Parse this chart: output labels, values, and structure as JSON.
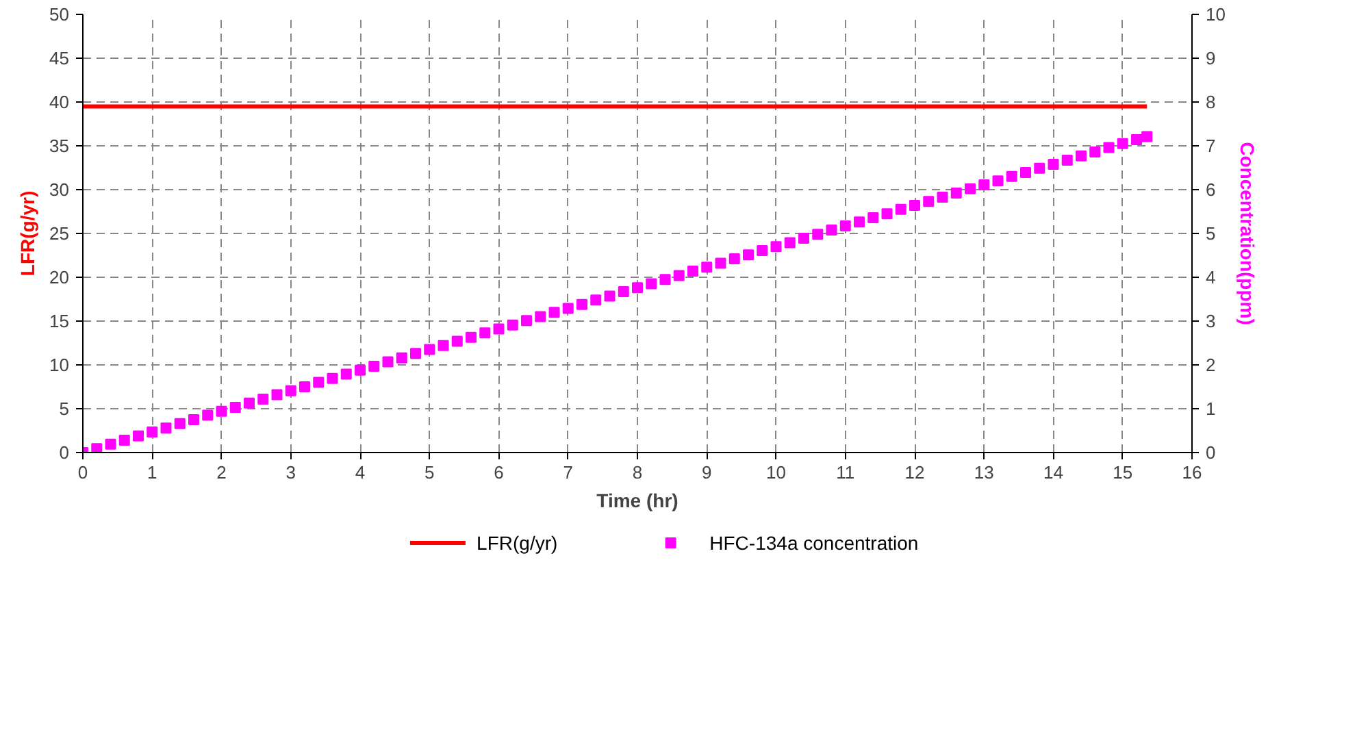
{
  "chart_data": {
    "type": "line",
    "xlabel": "Time (hr)",
    "ylabel": "LFR(g/yr)",
    "y2label": "Concentration(ppm)",
    "xlim": [
      0,
      16
    ],
    "xticks": [
      0,
      1,
      2,
      3,
      4,
      5,
      6,
      7,
      8,
      9,
      10,
      11,
      12,
      13,
      14,
      15,
      16
    ],
    "ylim": [
      0,
      50
    ],
    "yticks": [
      0,
      5,
      10,
      15,
      20,
      25,
      30,
      35,
      40,
      45,
      50
    ],
    "y2lim": [
      0,
      10
    ],
    "y2ticks": [
      0,
      1,
      2,
      3,
      4,
      5,
      6,
      7,
      8,
      9,
      10
    ],
    "grid": true,
    "legend": "bottom",
    "series": [
      {
        "name": "LFR(g/yr)",
        "color": "#ff0000",
        "line_style": "solid",
        "marker": "none",
        "x": [
          0,
          15.35
        ],
        "values": [
          39.5,
          39.5
        ]
      },
      {
        "name": "HFC-134a concentration",
        "type": "scatter",
        "axis": "y2",
        "color": "#ff00ff",
        "marker": "square",
        "x": [
          0,
          0.2,
          0.4,
          0.6,
          0.8,
          1,
          1.2,
          1.4,
          1.6,
          1.8,
          2,
          2.2,
          2.4,
          2.6,
          2.8,
          3,
          3.2,
          3.4,
          3.6,
          3.8,
          4,
          4.2,
          4.4,
          4.6,
          4.8,
          5,
          5.2,
          5.4,
          5.6,
          5.8,
          6,
          6.2,
          6.4,
          6.6,
          6.8,
          7,
          7.2,
          7.4,
          7.6,
          7.8,
          8,
          8.2,
          8.4,
          8.6,
          8.8,
          9,
          9.2,
          9.4,
          9.6,
          9.8,
          10,
          10.2,
          10.4,
          10.6,
          10.8,
          11,
          11.2,
          11.4,
          11.6,
          11.8,
          12,
          12.2,
          12.4,
          12.6,
          12.8,
          13,
          13.2,
          13.4,
          13.6,
          13.8,
          14,
          14.2,
          14.4,
          14.6,
          14.8,
          15,
          15.2,
          15.35
        ],
        "values": [
          0,
          0.09,
          0.19,
          0.28,
          0.38,
          0.47,
          0.56,
          0.66,
          0.75,
          0.85,
          0.94,
          1.03,
          1.13,
          1.22,
          1.32,
          1.41,
          1.5,
          1.6,
          1.69,
          1.79,
          1.88,
          1.97,
          2.07,
          2.16,
          2.26,
          2.35,
          2.44,
          2.54,
          2.63,
          2.73,
          2.82,
          2.91,
          3.01,
          3.1,
          3.2,
          3.29,
          3.38,
          3.48,
          3.57,
          3.67,
          3.76,
          3.85,
          3.95,
          4.04,
          4.14,
          4.23,
          4.32,
          4.42,
          4.51,
          4.61,
          4.7,
          4.79,
          4.89,
          4.98,
          5.08,
          5.17,
          5.26,
          5.36,
          5.45,
          5.55,
          5.64,
          5.73,
          5.83,
          5.92,
          6.02,
          6.11,
          6.2,
          6.3,
          6.39,
          6.49,
          6.58,
          6.67,
          6.77,
          6.86,
          6.96,
          7.05,
          7.14,
          7.21
        ]
      }
    ]
  }
}
